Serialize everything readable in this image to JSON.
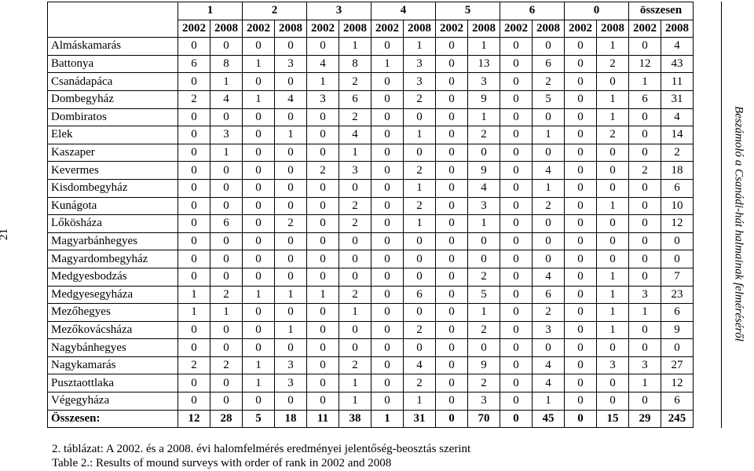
{
  "page_number": "21",
  "running_title": "Beszámoló a Csanádi-hát halmainak felméréséről",
  "table": {
    "group_header": [
      "1",
      "2",
      "3",
      "4",
      "5",
      "6",
      "0",
      "összesen"
    ],
    "year_header": [
      "2002",
      "2008",
      "2002",
      "2008",
      "2002",
      "2008",
      "2002",
      "2008",
      "2002",
      "2008",
      "2002",
      "2008",
      "2002",
      "2008",
      "2002",
      "2008"
    ],
    "rows": [
      [
        "Almáskamarás",
        0,
        0,
        0,
        0,
        0,
        1,
        0,
        1,
        0,
        1,
        0,
        0,
        0,
        1,
        0,
        4
      ],
      [
        "Battonya",
        6,
        8,
        1,
        3,
        4,
        8,
        1,
        3,
        0,
        13,
        0,
        6,
        0,
        2,
        12,
        43
      ],
      [
        "Csanádapáca",
        0,
        1,
        0,
        0,
        1,
        2,
        0,
        3,
        0,
        3,
        0,
        2,
        0,
        0,
        1,
        11
      ],
      [
        "Dombegyház",
        2,
        4,
        1,
        4,
        3,
        6,
        0,
        2,
        0,
        9,
        0,
        5,
        0,
        1,
        6,
        31
      ],
      [
        "Dombiratos",
        0,
        0,
        0,
        0,
        0,
        2,
        0,
        0,
        0,
        1,
        0,
        0,
        0,
        1,
        0,
        4
      ],
      [
        "Elek",
        0,
        3,
        0,
        1,
        0,
        4,
        0,
        1,
        0,
        2,
        0,
        1,
        0,
        2,
        0,
        14
      ],
      [
        "Kaszaper",
        0,
        1,
        0,
        0,
        0,
        1,
        0,
        0,
        0,
        0,
        0,
        0,
        0,
        0,
        0,
        2
      ],
      [
        "Kevermes",
        0,
        0,
        0,
        0,
        2,
        3,
        0,
        2,
        0,
        9,
        0,
        4,
        0,
        0,
        2,
        18
      ],
      [
        "Kisdombegyház",
        0,
        0,
        0,
        0,
        0,
        0,
        0,
        1,
        0,
        4,
        0,
        1,
        0,
        0,
        0,
        6
      ],
      [
        "Kunágota",
        0,
        0,
        0,
        0,
        0,
        2,
        0,
        2,
        0,
        3,
        0,
        2,
        0,
        1,
        0,
        10
      ],
      [
        "Lőkösháza",
        0,
        6,
        0,
        2,
        0,
        2,
        0,
        1,
        0,
        1,
        0,
        0,
        0,
        0,
        0,
        12
      ],
      [
        "Magyarbánhegyes",
        0,
        0,
        0,
        0,
        0,
        0,
        0,
        0,
        0,
        0,
        0,
        0,
        0,
        0,
        0,
        0
      ],
      [
        "Magyardombegyház",
        0,
        0,
        0,
        0,
        0,
        0,
        0,
        0,
        0,
        0,
        0,
        0,
        0,
        0,
        0,
        0
      ],
      [
        "Medgyesbodzás",
        0,
        0,
        0,
        0,
        0,
        0,
        0,
        0,
        0,
        2,
        0,
        4,
        0,
        1,
        0,
        7
      ],
      [
        "Medgyesegyháza",
        1,
        2,
        1,
        1,
        1,
        2,
        0,
        6,
        0,
        5,
        0,
        6,
        0,
        1,
        3,
        23
      ],
      [
        "Mezőhegyes",
        1,
        1,
        0,
        0,
        0,
        1,
        0,
        0,
        0,
        1,
        0,
        2,
        0,
        1,
        1,
        6
      ],
      [
        "Mezőkovácsháza",
        0,
        0,
        0,
        1,
        0,
        0,
        0,
        2,
        0,
        2,
        0,
        3,
        0,
        1,
        0,
        9
      ],
      [
        "Nagybánhegyes",
        0,
        0,
        0,
        0,
        0,
        0,
        0,
        0,
        0,
        0,
        0,
        0,
        0,
        0,
        0,
        0
      ],
      [
        "Nagykamarás",
        2,
        2,
        1,
        3,
        0,
        2,
        0,
        4,
        0,
        9,
        0,
        4,
        0,
        3,
        3,
        27
      ],
      [
        "Pusztaottlaka",
        0,
        0,
        1,
        3,
        0,
        1,
        0,
        2,
        0,
        2,
        0,
        4,
        0,
        0,
        1,
        12
      ],
      [
        "Végegyháza",
        0,
        0,
        0,
        0,
        0,
        1,
        0,
        1,
        0,
        3,
        0,
        1,
        0,
        0,
        0,
        6
      ]
    ],
    "total": [
      "Összesen:",
      12,
      28,
      5,
      18,
      11,
      38,
      1,
      31,
      0,
      70,
      0,
      45,
      0,
      15,
      29,
      245
    ]
  },
  "caption": {
    "hu": "2. táblázat: A 2002. és a 2008. évi halomfelmérés eredményei jelentőség-beosztás szerint",
    "en": "Table 2.: Results of mound surveys with order of rank in 2002 and 2008"
  }
}
